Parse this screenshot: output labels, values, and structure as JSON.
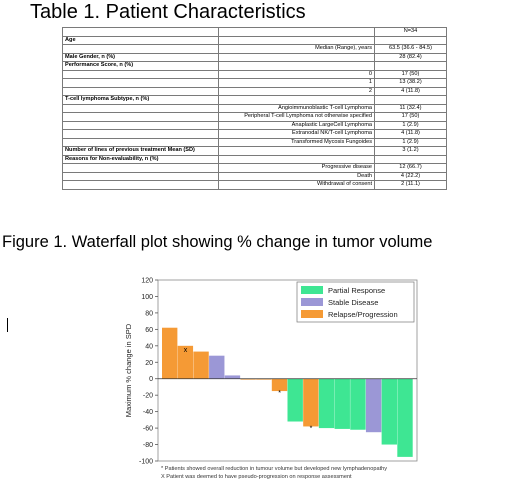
{
  "table": {
    "title": "Table 1. Patient Characteristics",
    "header_n": "N=34",
    "rows": [
      {
        "kind": "head",
        "label": "Age",
        "value": ""
      },
      {
        "kind": "item",
        "label": "Median (Range), years",
        "value": "63.5 (36.6 - 84.5)"
      },
      {
        "kind": "head",
        "label": "Male Gender, n (%)",
        "value": "28 (82.4)"
      },
      {
        "kind": "head",
        "label": "Performance Score, n (%)",
        "value": ""
      },
      {
        "kind": "item",
        "label": "0",
        "value": "17 (50)"
      },
      {
        "kind": "item",
        "label": "1",
        "value": "13 (38.2)"
      },
      {
        "kind": "item",
        "label": "2",
        "value": "4 (11.8)"
      },
      {
        "kind": "head",
        "label": "T-cell lymphoma Subtype, n (%)",
        "value": ""
      },
      {
        "kind": "item",
        "label": "Angioimmunoblastic T-cell Lymphoma",
        "value": "11 (32.4)"
      },
      {
        "kind": "item",
        "label": "Peripheral T-cell Lymphoma not otherwise specified",
        "value": "17 (50)"
      },
      {
        "kind": "item",
        "label": "Anaplastic LargeCell Lymphoma",
        "value": "1 (2.9)"
      },
      {
        "kind": "item",
        "label": "Extranodal NK/T-cell Lymphoma",
        "value": "4 (11.8)"
      },
      {
        "kind": "item",
        "label": "Transformed Mycosis Fungoides",
        "value": "1 (2.9)"
      },
      {
        "kind": "head",
        "label": "Number of lines of previous treatment Mean (SD)",
        "value": "3 (1.2)"
      },
      {
        "kind": "head",
        "label": "Reasons for Non-evaluability, n (%)",
        "value": ""
      },
      {
        "kind": "item",
        "label": "Progressive disease",
        "value": "12 (66.7)"
      },
      {
        "kind": "item",
        "label": "Death",
        "value": "4 (22.2)"
      },
      {
        "kind": "item",
        "label": "Withdrawal of consent",
        "value": "2 (11.1)"
      }
    ]
  },
  "figure": {
    "title": "Figure 1. Waterfall plot showing % change in tumor volume"
  },
  "chart_data": {
    "type": "bar",
    "title": "",
    "xlabel": "",
    "ylabel": "Maximum % change in SPD",
    "ylim": [
      -100,
      120
    ],
    "yticks": [
      120,
      100,
      80,
      60,
      40,
      20,
      0,
      -20,
      -40,
      -60,
      -80,
      -100
    ],
    "legend": {
      "placement": "top-right",
      "entries": [
        {
          "key": "partial",
          "label": "Partial Response",
          "color": "#3ee693"
        },
        {
          "key": "stable",
          "label": "Stable Disease",
          "color": "#9b97d6"
        },
        {
          "key": "progression",
          "label": "Relapse/Progression",
          "color": "#f59a35"
        }
      ]
    },
    "bars": [
      {
        "value": 62,
        "category": "progression"
      },
      {
        "value": 40,
        "category": "progression",
        "marker": "x"
      },
      {
        "value": 33,
        "category": "progression"
      },
      {
        "value": 28,
        "category": "stable"
      },
      {
        "value": 4,
        "category": "stable"
      },
      {
        "value": 0,
        "category": "progression"
      },
      {
        "value": 0,
        "category": "progression"
      },
      {
        "value": -15,
        "category": "progression",
        "marker": "*"
      },
      {
        "value": -52,
        "category": "partial"
      },
      {
        "value": -58,
        "category": "progression",
        "marker": "*"
      },
      {
        "value": -60,
        "category": "partial"
      },
      {
        "value": -61,
        "category": "partial"
      },
      {
        "value": -62,
        "category": "partial"
      },
      {
        "value": -65,
        "category": "stable"
      },
      {
        "value": -80,
        "category": "partial"
      },
      {
        "value": -95,
        "category": "partial"
      }
    ],
    "footnotes": [
      "* Patients showed overall reduction in tumour volume but developed new lymphadenopathy",
      "X Patient was deemed to have pseudo-progression on response assessment"
    ]
  }
}
